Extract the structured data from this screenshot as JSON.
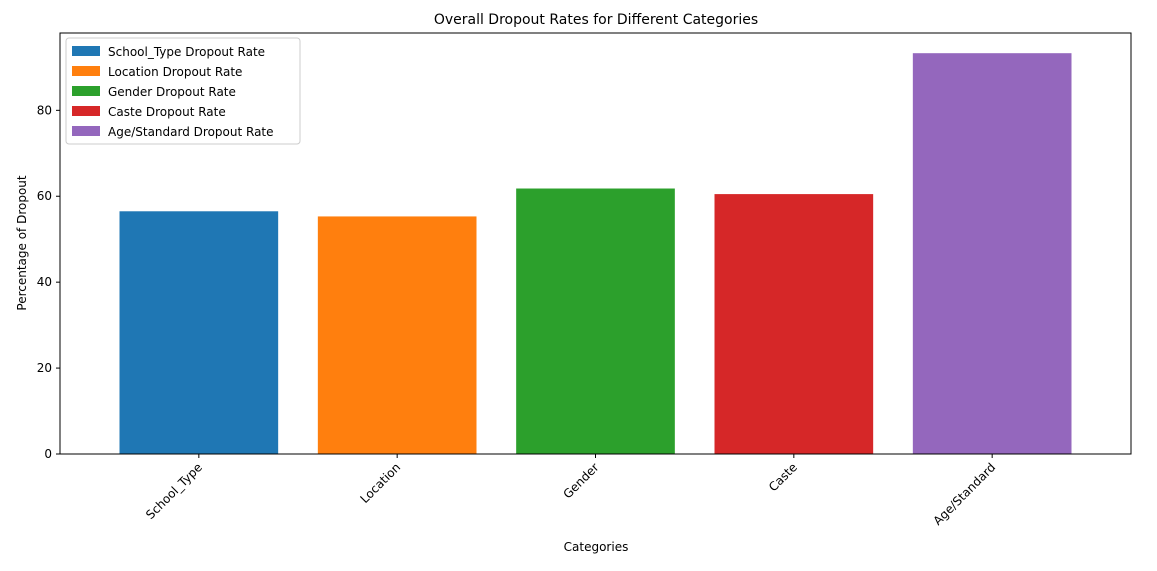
{
  "chart_data": {
    "type": "bar",
    "title": "Overall Dropout Rates for Different Categories",
    "xlabel": "Categories",
    "ylabel": "Percentage of Dropout",
    "categories": [
      "School_Type",
      "Location",
      "Gender",
      "Caste",
      "Age/Standard"
    ],
    "values": [
      56.5,
      55.3,
      61.8,
      60.5,
      93.3
    ],
    "ylim": [
      0,
      98
    ],
    "yticks": [
      0,
      20,
      40,
      60,
      80
    ],
    "ytick_labels": [
      "0",
      "20",
      "40",
      "60",
      "80"
    ],
    "colors": [
      "#1f77b4",
      "#ff7f0e",
      "#2ca02c",
      "#d62728",
      "#9467bd"
    ],
    "legend": {
      "placement": "top-left",
      "entries": [
        "School_Type Dropout Rate",
        "Location Dropout Rate",
        "Gender Dropout Rate",
        "Caste Dropout Rate",
        "Age/Standard Dropout Rate"
      ]
    },
    "xtick_rotation_deg": 45,
    "grid": false
  }
}
